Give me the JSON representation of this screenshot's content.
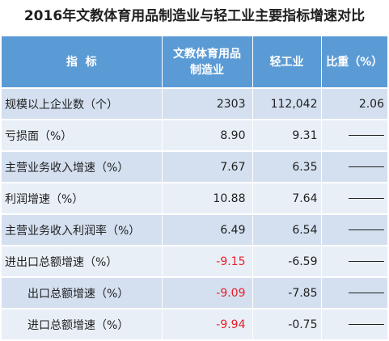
{
  "title": "2016年文教体育用品制造业与轻工业主要指标增速对比",
  "headers": {
    "indicator": "指  标",
    "culture_line1": "文教体育用品",
    "culture_line2": "制造业",
    "light": "轻工业",
    "ratio": "比重（%）"
  },
  "rows": [
    {
      "label": "规模以上企业数（个）",
      "culture": "2303",
      "light": "112,042",
      "ratio": "2.06",
      "indent": false,
      "red": false,
      "dash": false
    },
    {
      "label": "亏损面（%）",
      "culture": "8.90",
      "light": "9.31",
      "ratio": "",
      "indent": false,
      "red": false,
      "dash": true
    },
    {
      "label": "主营业务收入增速（%）",
      "culture": "7.67",
      "light": "6.35",
      "ratio": "",
      "indent": false,
      "red": false,
      "dash": true
    },
    {
      "label": "利润增速（%）",
      "culture": "10.88",
      "light": "7.64",
      "ratio": "",
      "indent": false,
      "red": false,
      "dash": true
    },
    {
      "label": "主营业务收入利润率（%）",
      "culture": "6.49",
      "light": "6.54",
      "ratio": "",
      "indent": false,
      "red": false,
      "dash": true
    },
    {
      "label": "进出口总额增速（%）",
      "culture": "-9.15",
      "light": "-6.59",
      "ratio": "",
      "indent": false,
      "red": true,
      "dash": true
    },
    {
      "label": "出口总额增速（%）",
      "culture": "-9.09",
      "light": "-7.85",
      "ratio": "",
      "indent": true,
      "red": true,
      "dash": true
    },
    {
      "label": "进口总额增速（%）",
      "culture": "-9.94",
      "light": "-0.75",
      "ratio": "",
      "indent": true,
      "red": true,
      "dash": true
    }
  ],
  "colors": {
    "header_bg": "#5b9bd5",
    "row_odd": "#d4e0f0",
    "row_even": "#e9eff7",
    "negative_highlight": "#e8202a"
  }
}
